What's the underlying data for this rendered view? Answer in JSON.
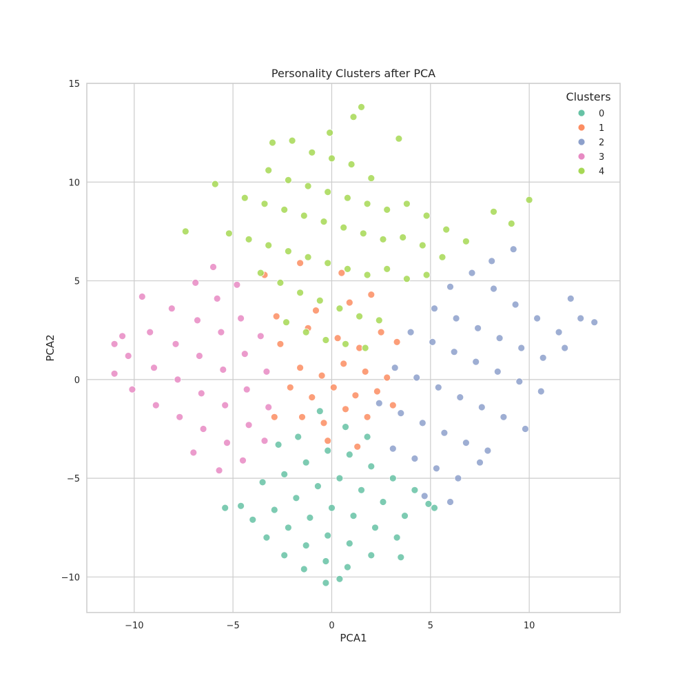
{
  "chart_data": {
    "type": "scatter",
    "title": "Personality Clusters after PCA",
    "xlabel": "PCA1",
    "ylabel": "PCA2",
    "xlim": [
      -12.4,
      14.6
    ],
    "ylim": [
      -11.8,
      15
    ],
    "xticks": [
      -10,
      -5,
      0,
      5,
      10
    ],
    "yticks": [
      -10,
      -5,
      0,
      5,
      10,
      15
    ],
    "xtick_labels": [
      "−10",
      "−5",
      "0",
      "5",
      "10"
    ],
    "ytick_labels": [
      "−10",
      "−5",
      "0",
      "5",
      "10",
      "15"
    ],
    "grid": true,
    "legend": {
      "title": "Clusters",
      "placement": "top-right"
    },
    "series": [
      {
        "name": "0",
        "color": "#66c2a5",
        "points": [
          [
            -4.6,
            -6.4
          ],
          [
            -3.5,
            -5.2
          ],
          [
            -2.4,
            -4.8
          ],
          [
            -1.3,
            -4.2
          ],
          [
            -0.2,
            -3.6
          ],
          [
            0.9,
            -3.8
          ],
          [
            2,
            -4.4
          ],
          [
            3.1,
            -5
          ],
          [
            4.2,
            -5.6
          ],
          [
            4.9,
            -6.3
          ],
          [
            -4,
            -7.1
          ],
          [
            -2.9,
            -6.6
          ],
          [
            -1.8,
            -6
          ],
          [
            -0.7,
            -5.4
          ],
          [
            0.4,
            -5
          ],
          [
            1.5,
            -5.6
          ],
          [
            2.6,
            -6.2
          ],
          [
            3.7,
            -6.9
          ],
          [
            -3.3,
            -8
          ],
          [
            -2.2,
            -7.5
          ],
          [
            -1.1,
            -7
          ],
          [
            0,
            -6.5
          ],
          [
            1.1,
            -6.9
          ],
          [
            2.2,
            -7.5
          ],
          [
            3.3,
            -8
          ],
          [
            -2.4,
            -8.9
          ],
          [
            -1.3,
            -8.4
          ],
          [
            -0.2,
            -7.9
          ],
          [
            0.9,
            -8.3
          ],
          [
            2,
            -8.9
          ],
          [
            -1.4,
            -9.6
          ],
          [
            -0.3,
            -9.2
          ],
          [
            0.8,
            -9.5
          ],
          [
            -0.3,
            -10.3
          ],
          [
            0.4,
            -10.1
          ],
          [
            -1.7,
            -2.9
          ],
          [
            -0.6,
            -1.6
          ],
          [
            0.7,
            -2.4
          ],
          [
            1.8,
            -2.9
          ],
          [
            -2.7,
            -3.3
          ],
          [
            3.5,
            -9
          ],
          [
            -5.4,
            -6.5
          ],
          [
            5.2,
            -6.5
          ]
        ]
      },
      {
        "name": "1",
        "color": "#fc8d62",
        "points": [
          [
            -2.6,
            1.8
          ],
          [
            -1.6,
            0.6
          ],
          [
            -0.5,
            0.2
          ],
          [
            0.6,
            0.8
          ],
          [
            1.7,
            0.4
          ],
          [
            2.8,
            0.1
          ],
          [
            -2.1,
            -0.4
          ],
          [
            -1,
            -0.9
          ],
          [
            0.1,
            -0.4
          ],
          [
            1.2,
            -0.8
          ],
          [
            2.3,
            -0.6
          ],
          [
            3.1,
            -1.3
          ],
          [
            -1.5,
            -1.9
          ],
          [
            -0.4,
            -2.2
          ],
          [
            0.7,
            -1.5
          ],
          [
            1.8,
            -1.9
          ],
          [
            -2.9,
            -1.9
          ],
          [
            -1.2,
            2.6
          ],
          [
            0.3,
            2.1
          ],
          [
            1.4,
            1.6
          ],
          [
            2.5,
            2.4
          ],
          [
            -0.8,
            3.5
          ],
          [
            0.9,
            3.9
          ],
          [
            2,
            4.3
          ],
          [
            -1.6,
            5.9
          ],
          [
            0.5,
            5.4
          ],
          [
            -2.8,
            3.2
          ],
          [
            3.3,
            1.9
          ],
          [
            -0.2,
            -3.1
          ],
          [
            1.3,
            -3.4
          ],
          [
            -3.4,
            5.3
          ]
        ]
      },
      {
        "name": "2",
        "color": "#8da0cb",
        "points": [
          [
            6,
            4.7
          ],
          [
            7.1,
            5.4
          ],
          [
            8.2,
            4.6
          ],
          [
            9.3,
            3.8
          ],
          [
            10.4,
            3.1
          ],
          [
            11.5,
            2.4
          ],
          [
            12.6,
            3.1
          ],
          [
            13.3,
            2.9
          ],
          [
            5.2,
            3.6
          ],
          [
            6.3,
            3.1
          ],
          [
            7.4,
            2.6
          ],
          [
            8.5,
            2.1
          ],
          [
            9.6,
            1.6
          ],
          [
            10.7,
            1.1
          ],
          [
            11.8,
            1.6
          ],
          [
            4,
            2.4
          ],
          [
            5.1,
            1.9
          ],
          [
            6.2,
            1.4
          ],
          [
            7.3,
            0.9
          ],
          [
            8.4,
            0.4
          ],
          [
            9.5,
            -0.1
          ],
          [
            10.6,
            -0.6
          ],
          [
            3.2,
            0.6
          ],
          [
            4.3,
            0.1
          ],
          [
            5.4,
            -0.4
          ],
          [
            6.5,
            -0.9
          ],
          [
            7.6,
            -1.4
          ],
          [
            8.7,
            -1.9
          ],
          [
            9.8,
            -2.5
          ],
          [
            2.4,
            -1.2
          ],
          [
            3.5,
            -1.7
          ],
          [
            4.6,
            -2.2
          ],
          [
            5.7,
            -2.7
          ],
          [
            6.8,
            -3.2
          ],
          [
            7.9,
            -3.6
          ],
          [
            3.1,
            -3.5
          ],
          [
            4.2,
            -4
          ],
          [
            5.3,
            -4.5
          ],
          [
            6.4,
            -5
          ],
          [
            7.5,
            -4.2
          ],
          [
            4.7,
            -5.9
          ],
          [
            6,
            -6.2
          ],
          [
            9.2,
            6.6
          ],
          [
            8.1,
            6
          ],
          [
            12.1,
            4.1
          ]
        ]
      },
      {
        "name": "3",
        "color": "#e78ac3",
        "points": [
          [
            -11,
            0.3
          ],
          [
            -10.3,
            1.2
          ],
          [
            -10.1,
            -0.5
          ],
          [
            -9.2,
            2.4
          ],
          [
            -9,
            0.6
          ],
          [
            -8.9,
            -1.3
          ],
          [
            -8.1,
            3.6
          ],
          [
            -7.9,
            1.8
          ],
          [
            -7.8,
            0
          ],
          [
            -7.7,
            -1.9
          ],
          [
            -6.9,
            4.9
          ],
          [
            -6.8,
            3
          ],
          [
            -6.7,
            1.2
          ],
          [
            -6.6,
            -0.7
          ],
          [
            -6.5,
            -2.5
          ],
          [
            -6,
            5.7
          ],
          [
            -5.8,
            4.1
          ],
          [
            -5.6,
            2.4
          ],
          [
            -5.5,
            0.5
          ],
          [
            -5.4,
            -1.3
          ],
          [
            -5.3,
            -3.2
          ],
          [
            -4.8,
            4.8
          ],
          [
            -4.6,
            3.1
          ],
          [
            -4.4,
            1.3
          ],
          [
            -4.3,
            -0.5
          ],
          [
            -4.2,
            -2.3
          ],
          [
            -4.5,
            -4.1
          ],
          [
            -3.6,
            2.2
          ],
          [
            -3.3,
            0.4
          ],
          [
            -3.2,
            -1.4
          ],
          [
            -3.4,
            -3.1
          ],
          [
            -5.7,
            -4.6
          ],
          [
            -7,
            -3.7
          ],
          [
            -11,
            1.8
          ],
          [
            -10.6,
            2.2
          ],
          [
            -9.6,
            4.2
          ]
        ]
      },
      {
        "name": "4",
        "color": "#a6d854",
        "points": [
          [
            -2,
            12.1
          ],
          [
            -1,
            11.5
          ],
          [
            0,
            11.2
          ],
          [
            1,
            10.9
          ],
          [
            2,
            10.2
          ],
          [
            -3.2,
            10.6
          ],
          [
            -2.2,
            10.1
          ],
          [
            -1.2,
            9.8
          ],
          [
            -0.2,
            9.5
          ],
          [
            0.8,
            9.2
          ],
          [
            1.8,
            8.9
          ],
          [
            2.8,
            8.6
          ],
          [
            3.8,
            8.9
          ],
          [
            4.8,
            8.3
          ],
          [
            5.8,
            7.6
          ],
          [
            6.8,
            7
          ],
          [
            -4.4,
            9.2
          ],
          [
            -3.4,
            8.9
          ],
          [
            -2.4,
            8.6
          ],
          [
            -1.4,
            8.3
          ],
          [
            -0.4,
            8
          ],
          [
            0.6,
            7.7
          ],
          [
            1.6,
            7.4
          ],
          [
            2.6,
            7.1
          ],
          [
            3.6,
            7.2
          ],
          [
            4.6,
            6.8
          ],
          [
            5.6,
            6.2
          ],
          [
            -5.2,
            7.4
          ],
          [
            -4.2,
            7.1
          ],
          [
            -3.2,
            6.8
          ],
          [
            -2.2,
            6.5
          ],
          [
            -1.2,
            6.2
          ],
          [
            -0.2,
            5.9
          ],
          [
            0.8,
            5.6
          ],
          [
            1.8,
            5.3
          ],
          [
            2.8,
            5.6
          ],
          [
            3.8,
            5.1
          ],
          [
            4.8,
            5.3
          ],
          [
            -3.6,
            5.4
          ],
          [
            -2.6,
            4.9
          ],
          [
            -1.6,
            4.4
          ],
          [
            -0.6,
            4
          ],
          [
            0.4,
            3.6
          ],
          [
            1.4,
            3.2
          ],
          [
            2.4,
            3
          ],
          [
            -2.3,
            2.9
          ],
          [
            -1.3,
            2.4
          ],
          [
            -0.3,
            2
          ],
          [
            0.7,
            1.8
          ],
          [
            1.7,
            1.6
          ],
          [
            1.5,
            13.8
          ],
          [
            1.1,
            13.3
          ],
          [
            -0.1,
            12.5
          ],
          [
            3.4,
            12.2
          ],
          [
            10,
            9.1
          ],
          [
            -7.4,
            7.5
          ],
          [
            -5.9,
            9.9
          ],
          [
            9.1,
            7.9
          ],
          [
            8.2,
            8.5
          ],
          [
            -3,
            12
          ]
        ]
      }
    ]
  }
}
